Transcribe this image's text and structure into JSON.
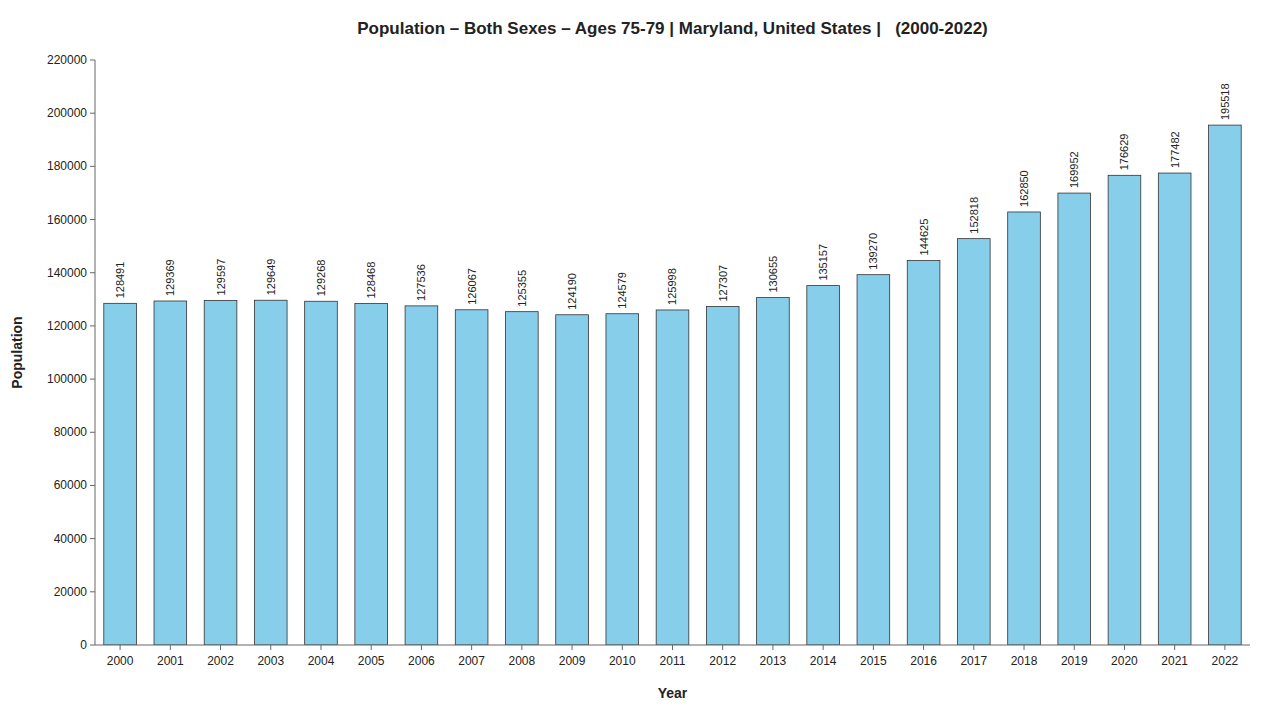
{
  "chart_data": {
    "type": "bar",
    "title": "Population – Both Sexes – Ages 75-79 | Maryland, United States |   (2000-2022)",
    "xlabel": "Year",
    "ylabel": "Population",
    "categories": [
      "2000",
      "2001",
      "2002",
      "2003",
      "2004",
      "2005",
      "2006",
      "2007",
      "2008",
      "2009",
      "2010",
      "2011",
      "2012",
      "2013",
      "2014",
      "2015",
      "2016",
      "2017",
      "2018",
      "2019",
      "2020",
      "2021",
      "2022"
    ],
    "values": [
      128491,
      129369,
      129597,
      129649,
      129268,
      128468,
      127536,
      126067,
      125355,
      124190,
      124579,
      125998,
      127307,
      130655,
      135157,
      139270,
      144625,
      152818,
      162850,
      169952,
      176629,
      177482,
      195518
    ],
    "color": "#87CEEB",
    "ylim": [
      0,
      220000
    ],
    "yticks": [
      0,
      20000,
      40000,
      60000,
      80000,
      100000,
      120000,
      140000,
      160000,
      180000,
      200000,
      220000
    ],
    "grid": false,
    "data_labels": true
  }
}
